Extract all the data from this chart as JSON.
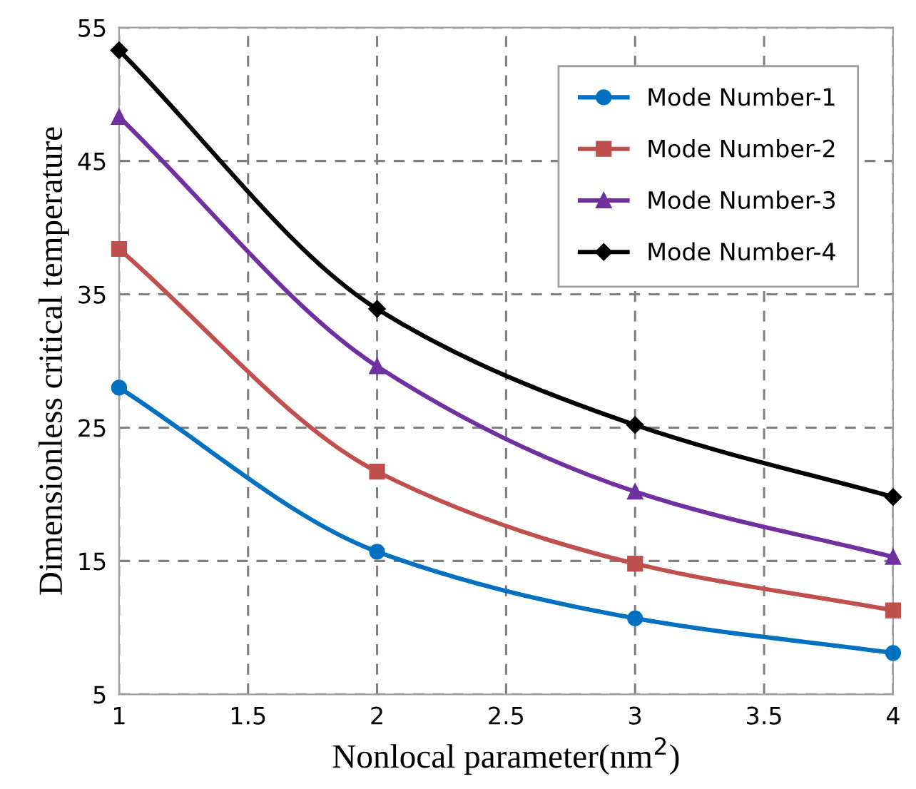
{
  "chart_data": {
    "type": "line",
    "xlabel": "Nonlocal parameter(nm$^{2}$)",
    "ylabel": "Dimensionless critical temperature",
    "x": [
      1,
      2,
      3,
      4
    ],
    "series": [
      {
        "name": "Mode Number-1",
        "color": "#0070c0",
        "marker": "circle",
        "values": [
          28.0,
          15.7,
          10.7,
          8.1
        ]
      },
      {
        "name": "Mode Number-2",
        "color": "#c0504d",
        "marker": "square",
        "values": [
          38.4,
          21.7,
          14.8,
          11.3
        ]
      },
      {
        "name": "Mode Number-3",
        "color": "#7030a0",
        "marker": "triangle",
        "values": [
          48.3,
          29.6,
          20.2,
          15.3
        ]
      },
      {
        "name": "Mode Number-4",
        "color": "#000000",
        "marker": "diamond",
        "values": [
          53.3,
          33.9,
          25.2,
          19.8
        ]
      }
    ],
    "xlim": [
      1,
      4
    ],
    "xticks": [
      1,
      1.5,
      2,
      2.5,
      3,
      3.5,
      4
    ],
    "ylim": [
      5,
      55
    ],
    "yticks": [
      5,
      15,
      25,
      35,
      45,
      55
    ],
    "grid": true,
    "legend": "top right",
    "line_style": "solid"
  }
}
